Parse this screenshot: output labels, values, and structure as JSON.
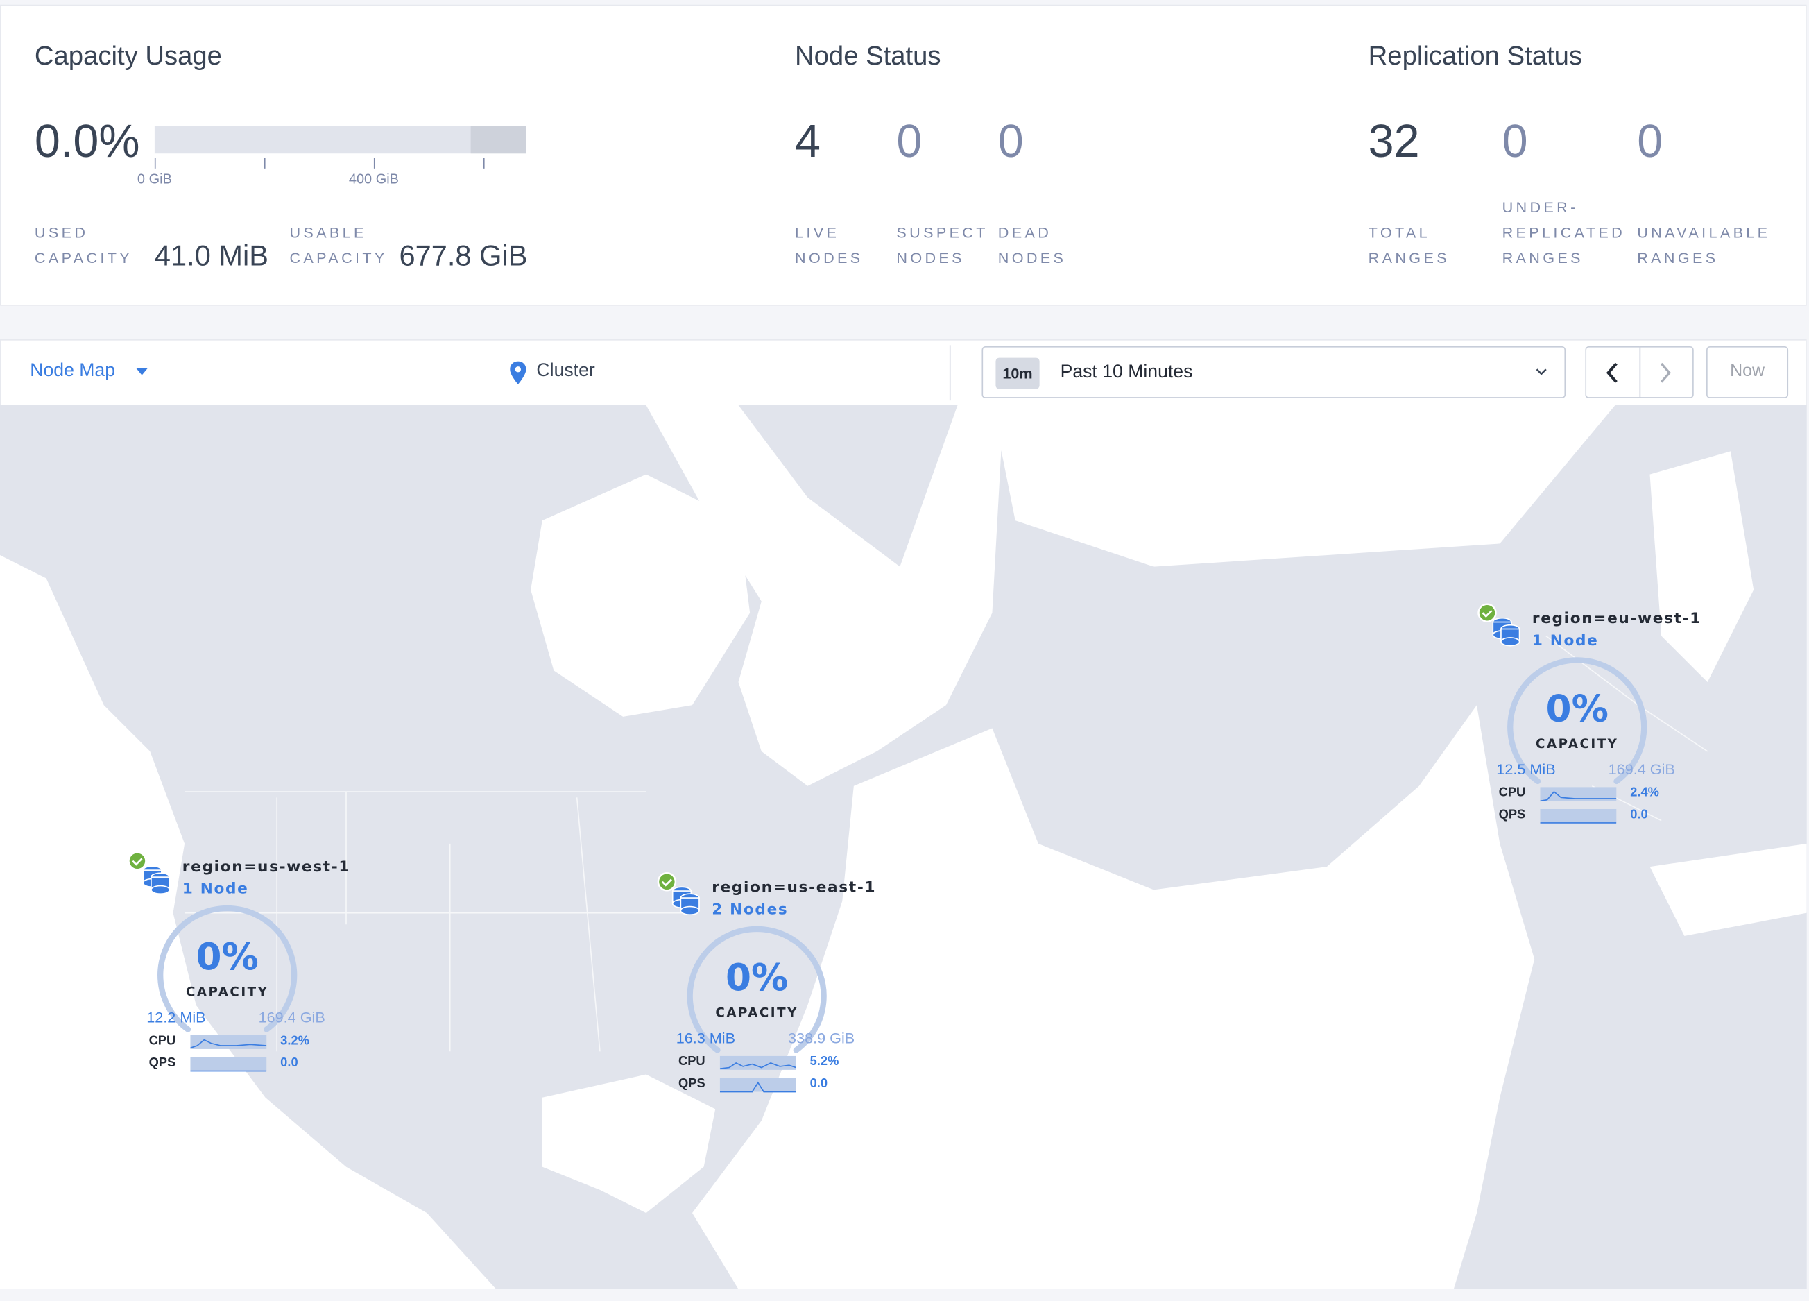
{
  "capacity": {
    "title": "Capacity Usage",
    "percent": "0.0%",
    "usage_fraction": 0.0,
    "axis_labels": [
      "0 GiB",
      "400 GiB"
    ],
    "used_label_1": "USED",
    "used_label_2": "CAPACITY",
    "used_value": "41.0 MiB",
    "usable_label_1": "USABLE",
    "usable_label_2": "CAPACITY",
    "usable_value": "677.8 GiB"
  },
  "node_status": {
    "title": "Node Status",
    "stats": [
      {
        "value": "4",
        "label_1": "LIVE",
        "label_2": "NODES"
      },
      {
        "value": "0",
        "label_1": "SUSPECT",
        "label_2": "NODES"
      },
      {
        "value": "0",
        "label_1": "DEAD",
        "label_2": "NODES"
      }
    ]
  },
  "replication_status": {
    "title": "Replication Status",
    "stats": [
      {
        "value": "32",
        "label_0": "",
        "label_1": "TOTAL",
        "label_2": "RANGES"
      },
      {
        "value": "0",
        "label_0": "UNDER-",
        "label_1": "REPLICATED",
        "label_2": "RANGES"
      },
      {
        "value": "0",
        "label_0": "",
        "label_1": "UNAVAILABLE",
        "label_2": "RANGES"
      }
    ]
  },
  "toolbar": {
    "view_select": "Node Map",
    "breadcrumb": "Cluster",
    "time_chip": "10m",
    "time_range": "Past 10 Minutes",
    "now_label": "Now"
  },
  "nodes": [
    {
      "region": "region=us-west-1",
      "count": "1 Node",
      "capacity_pct": "0%",
      "capacity_label": "CAPACITY",
      "used": "12.2 MiB",
      "total": "169.4 GiB",
      "cpu_label": "CPU",
      "cpu": "3.2%",
      "qps_label": "QPS",
      "qps": "0.0",
      "status": "healthy"
    },
    {
      "region": "region=us-east-1",
      "count": "2 Nodes",
      "capacity_pct": "0%",
      "capacity_label": "CAPACITY",
      "used": "16.3 MiB",
      "total": "338.9 GiB",
      "cpu_label": "CPU",
      "cpu": "5.2%",
      "qps_label": "QPS",
      "qps": "0.0",
      "status": "healthy"
    },
    {
      "region": "region=eu-west-1",
      "count": "1 Node",
      "capacity_pct": "0%",
      "capacity_label": "CAPACITY",
      "used": "12.5 MiB",
      "total": "169.4 GiB",
      "cpu_label": "CPU",
      "cpu": "2.4%",
      "qps_label": "QPS",
      "qps": "0.0",
      "status": "healthy"
    }
  ],
  "colors": {
    "accent": "#3a7de1",
    "land": "#e1e4ec",
    "water": "#ffffff",
    "healthy": "#6fb13f",
    "text": "#394455",
    "muted": "#7e89a9"
  }
}
